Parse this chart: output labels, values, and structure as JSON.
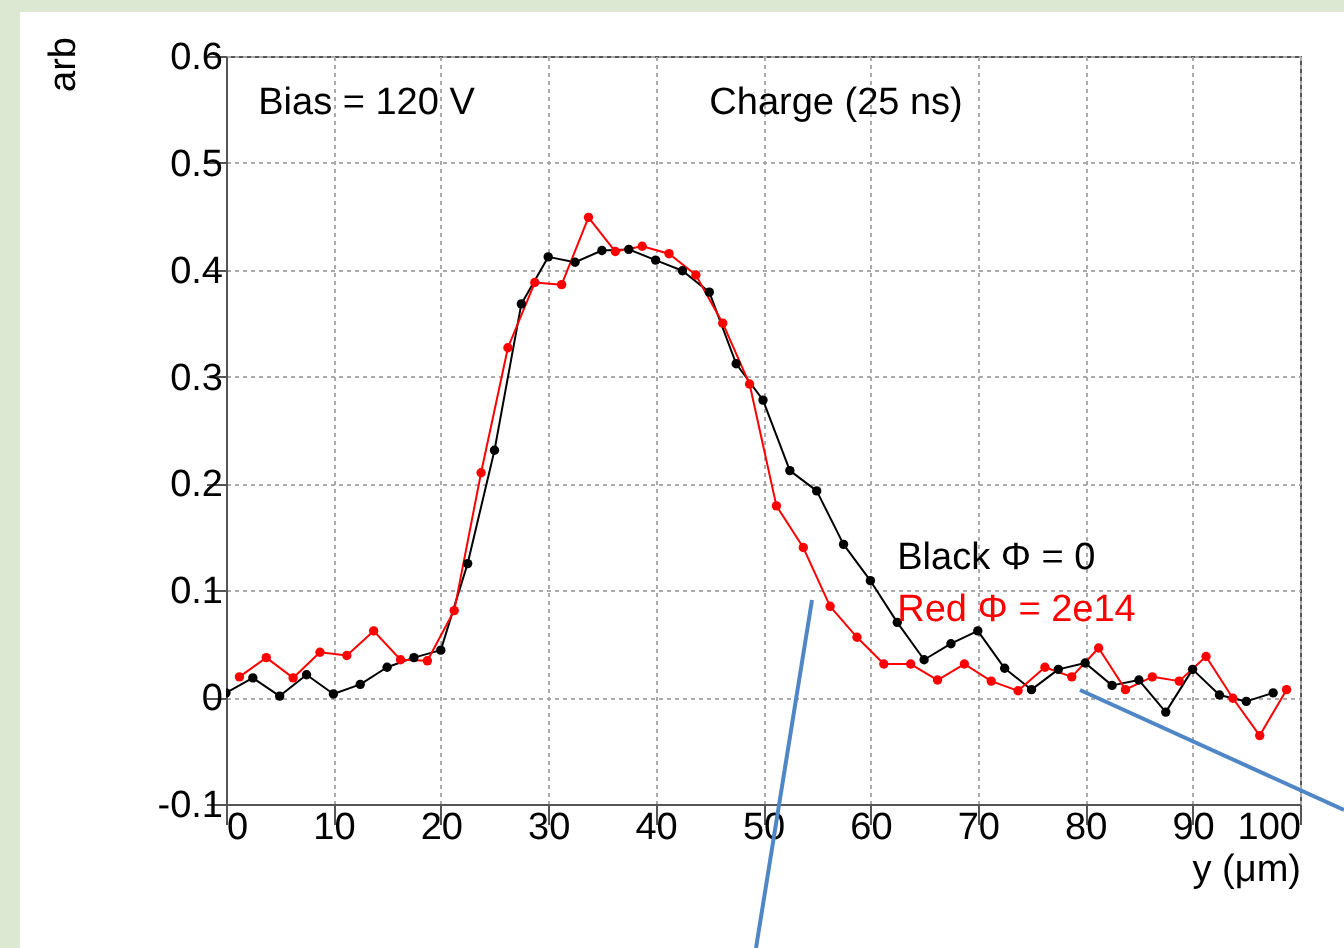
{
  "chart_data": {
    "type": "line",
    "xlabel": "y (μm)",
    "ylabel": "arb",
    "annotations": [
      "Bias = 120 V",
      "Charge (25 ns)"
    ],
    "xlim": [
      0,
      100
    ],
    "xticks": [
      0,
      10,
      20,
      30,
      40,
      50,
      60,
      70,
      80,
      90,
      100
    ],
    "ylim": [
      -0.1,
      0.6
    ],
    "yticks": [
      -0.1,
      0,
      0.1,
      0.2,
      0.3,
      0.4,
      0.5,
      0.6
    ],
    "grid": true,
    "marker": "circle",
    "line_style": "solid",
    "legend": "right",
    "series": [
      {
        "name": "Black Φ = 0",
        "color": "#000000",
        "x": [
          0,
          2.5,
          5,
          7.5,
          10,
          12.5,
          15,
          17.5,
          20,
          22.5,
          25,
          27.5,
          30,
          32.5,
          35,
          37.5,
          40,
          42.5,
          45,
          47.5,
          50,
          52.5,
          55,
          57.5,
          60,
          62.5,
          65,
          67.5,
          70,
          72.5,
          75,
          77.5,
          80,
          82.5,
          85,
          87.5,
          90,
          92.5,
          95,
          97.5
        ],
        "values": [
          0.004,
          0.018,
          0.001,
          0.021,
          0.003,
          0.012,
          0.028,
          0.037,
          0.044,
          0.125,
          0.231,
          0.368,
          0.412,
          0.407,
          0.418,
          0.419,
          0.409,
          0.399,
          0.379,
          0.312,
          0.278,
          0.212,
          0.193,
          0.143,
          0.109,
          0.07,
          0.035,
          0.05,
          0.062,
          0.027,
          0.007,
          0.026,
          0.032,
          0.011,
          0.016,
          -0.014,
          0.026,
          0.002,
          -0.004,
          0.004
        ]
      },
      {
        "name": "Red Φ = 2e14",
        "color": "#ff0000",
        "x": [
          1.25,
          3.75,
          6.25,
          8.75,
          11.25,
          13.75,
          16.25,
          18.75,
          21.25,
          23.75,
          26.25,
          28.75,
          31.25,
          33.75,
          36.25,
          38.75,
          41.25,
          43.75,
          46.25,
          48.75,
          51.25,
          53.75,
          56.25,
          58.75,
          61.25,
          63.75,
          66.25,
          68.75,
          71.25,
          73.75,
          76.25,
          78.75,
          81.25,
          83.75,
          86.25,
          88.75,
          91.25,
          93.75,
          96.25,
          98.75
        ],
        "values": [
          0.019,
          0.037,
          0.018,
          0.042,
          0.039,
          0.062,
          0.035,
          0.034,
          0.081,
          0.21,
          0.327,
          0.388,
          0.386,
          0.449,
          0.417,
          0.422,
          0.415,
          0.395,
          0.35,
          0.293,
          0.179,
          0.14,
          0.085,
          0.056,
          0.031,
          0.031,
          0.016,
          0.031,
          0.015,
          0.006,
          0.028,
          0.019,
          0.046,
          0.007,
          0.019,
          0.015,
          0.038,
          -0.001,
          -0.036,
          0.007
        ]
      }
    ]
  }
}
